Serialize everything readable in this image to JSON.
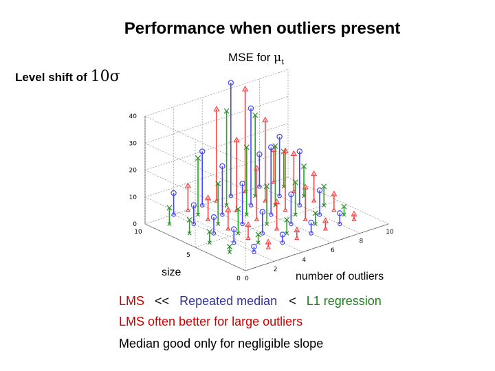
{
  "title": "Performance when outliers present",
  "subtitle": {
    "prefix": "MSE  for",
    "symbol": "μ",
    "subscript": "t"
  },
  "level_shift": {
    "prefix": "Level shift of",
    "value": "10σ"
  },
  "notes": {
    "line1": {
      "lms": "LMS",
      "op1": "<<",
      "rm": "Repeated median",
      "op2": "<",
      "l1": "L1 regression"
    },
    "line2": "LMS often better for large outliers",
    "line3": "Median good only for negligible slope"
  },
  "colors": {
    "lms": "#cc0000",
    "rm": "#33339a",
    "l1": "#227722",
    "blue_stem": "#4646ff",
    "red_stem": "#ff4040",
    "green_stem": "#22aa22"
  },
  "chart_data": {
    "type": "3d-stem",
    "title": "MSE  for μt",
    "xlabel": "number of outliers",
    "ylabel": "size",
    "zlim": [
      0,
      40
    ],
    "z_ticks": [
      "0",
      "10",
      "20",
      "30",
      "40"
    ],
    "x_ticks": [
      "0",
      "2",
      "4",
      "6",
      "8",
      "10"
    ],
    "y_ticks": [
      "0",
      "5",
      "10"
    ],
    "grid": true,
    "markers": {
      "blue": "circle",
      "red": "triangle",
      "green": "x"
    },
    "note": "approximate values read from rendering",
    "series": [
      {
        "marker": "circle",
        "color": "blue",
        "points": [
          [
            2,
            2,
            2
          ],
          [
            4,
            2,
            3
          ],
          [
            6,
            2,
            4
          ],
          [
            8,
            2,
            4
          ],
          [
            2,
            4,
            5
          ],
          [
            4,
            4,
            8
          ],
          [
            6,
            4,
            11
          ],
          [
            8,
            4,
            9
          ],
          [
            2,
            6,
            6
          ],
          [
            4,
            6,
            15
          ],
          [
            6,
            6,
            25
          ],
          [
            8,
            6,
            20
          ],
          [
            2,
            8,
            7
          ],
          [
            4,
            8,
            18
          ],
          [
            6,
            8,
            36
          ],
          [
            8,
            8,
            22
          ],
          [
            2,
            10,
            8
          ],
          [
            4,
            10,
            20
          ],
          [
            6,
            10,
            42
          ],
          [
            8,
            10,
            12
          ]
        ]
      },
      {
        "marker": "triangle",
        "color": "red",
        "points": [
          [
            3,
            2,
            2
          ],
          [
            5,
            2,
            3
          ],
          [
            7,
            2,
            3
          ],
          [
            9,
            2,
            2
          ],
          [
            3,
            4,
            5
          ],
          [
            5,
            4,
            10
          ],
          [
            7,
            4,
            12
          ],
          [
            9,
            4,
            6
          ],
          [
            3,
            6,
            7
          ],
          [
            5,
            6,
            19
          ],
          [
            7,
            6,
            22
          ],
          [
            9,
            6,
            10
          ],
          [
            3,
            8,
            8
          ],
          [
            5,
            8,
            26
          ],
          [
            7,
            8,
            30
          ],
          [
            9,
            8,
            14
          ],
          [
            3,
            10,
            9
          ],
          [
            5,
            10,
            34
          ],
          [
            7,
            10,
            38
          ],
          [
            9,
            10,
            12
          ]
        ]
      },
      {
        "marker": "x",
        "color": "green",
        "points": [
          [
            1,
            3,
            2
          ],
          [
            3,
            3,
            3
          ],
          [
            5,
            3,
            5
          ],
          [
            7,
            3,
            4
          ],
          [
            9,
            3,
            3
          ],
          [
            1,
            5,
            4
          ],
          [
            3,
            5,
            9
          ],
          [
            5,
            5,
            14
          ],
          [
            7,
            5,
            12
          ],
          [
            9,
            5,
            7
          ],
          [
            1,
            7,
            5
          ],
          [
            3,
            7,
            15
          ],
          [
            5,
            7,
            25
          ],
          [
            7,
            7,
            22
          ],
          [
            9,
            7,
            11
          ],
          [
            1,
            9,
            6
          ],
          [
            3,
            9,
            21
          ],
          [
            5,
            9,
            35
          ],
          [
            7,
            9,
            30
          ],
          [
            9,
            9,
            13
          ]
        ]
      }
    ]
  }
}
